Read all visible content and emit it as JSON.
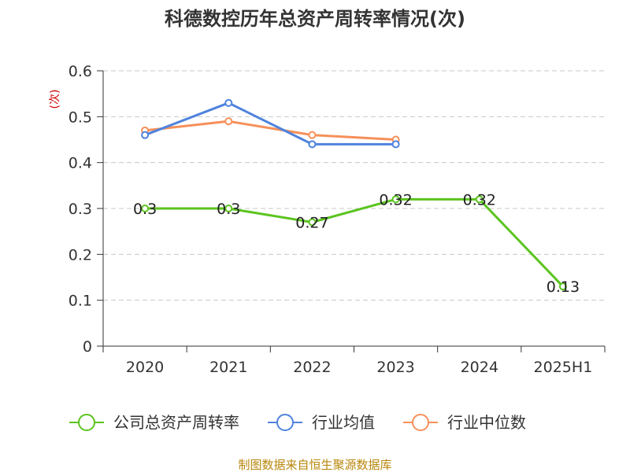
{
  "chart_data": {
    "type": "line",
    "title": "科德数控历年总资产周转率情况(次)",
    "xlabel": "",
    "ylabel": "(次)",
    "categories": [
      "2020",
      "2021",
      "2022",
      "2023",
      "2024",
      "2025H1"
    ],
    "ylim": [
      0,
      0.6
    ],
    "yticks": [
      "0",
      "0.1",
      "0.2",
      "0.3",
      "0.4",
      "0.5",
      "0.6"
    ],
    "grid": true,
    "legend_position": "bottom",
    "series": [
      {
        "name": "公司总资产周转率",
        "color": "#5bc41f",
        "values": [
          0.3,
          0.3,
          0.27,
          0.32,
          0.32,
          0.13
        ],
        "labels": [
          "0.3",
          "0.3",
          "0.27",
          "0.32",
          "0.32",
          "0.13"
        ],
        "show_labels": true
      },
      {
        "name": "行业均值",
        "color": "#4f83dd",
        "values": [
          0.46,
          0.53,
          0.44,
          0.44,
          null,
          null
        ],
        "show_labels": false
      },
      {
        "name": "行业中位数",
        "color": "#f6905a",
        "values": [
          0.47,
          0.49,
          0.46,
          0.45,
          null,
          null
        ],
        "show_labels": false
      }
    ],
    "source": "制图数据来自恒生聚源数据库"
  }
}
